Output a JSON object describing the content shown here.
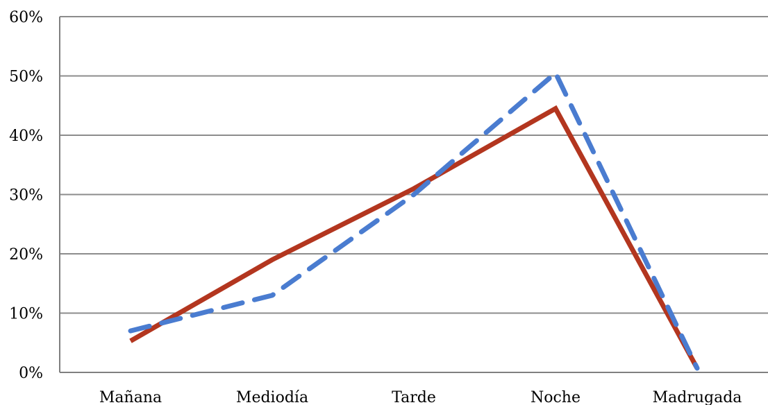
{
  "chart_data": {
    "type": "line",
    "title": "",
    "xlabel": "",
    "ylabel": "",
    "categories": [
      "Mañana",
      "Mediodía",
      "Tarde",
      "Noche",
      "Madrugada"
    ],
    "y_ticks": [
      "0%",
      "10%",
      "20%",
      "30%",
      "40%",
      "50%",
      "60%"
    ],
    "ylim": [
      0,
      0.6
    ],
    "grid": true,
    "legend": "none",
    "series": [
      {
        "values": [
          0.053,
          0.19,
          0.31,
          0.445,
          0.007
        ],
        "color": "#B3361F",
        "style": "solid"
      },
      {
        "values": [
          0.07,
          0.13,
          0.3,
          0.505,
          0.007
        ],
        "color": "#4A7CD0",
        "style": "dashed"
      }
    ]
  }
}
